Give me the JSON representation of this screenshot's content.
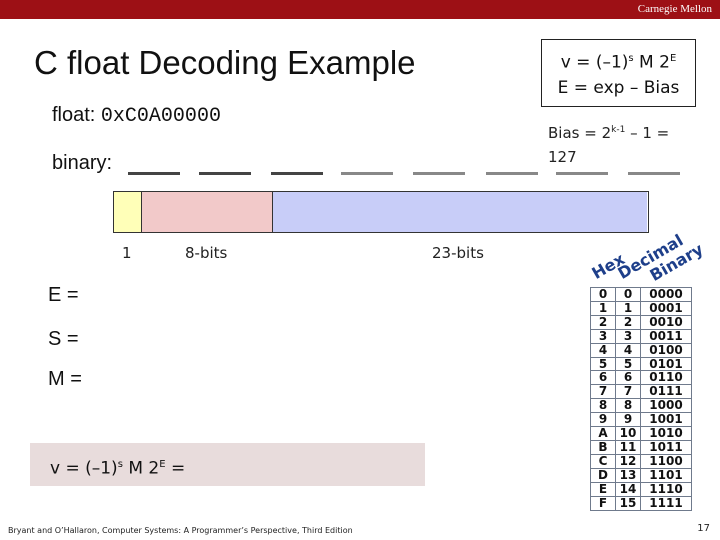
{
  "header": {
    "brand": "Carnegie Mellon",
    "bar_color": "#9d1015"
  },
  "slide": {
    "title": "C float Decoding Example",
    "float_label": "float:",
    "float_value": "0xC0A00000",
    "binary_label": "binary:",
    "formula": {
      "v_pre": "v = (–1)",
      "v_sup_s": "s",
      "v_mid": " M 2",
      "v_sup_e": "E",
      "e_line": "E  =  exp – Bias"
    },
    "bias": {
      "pre": "Bias = 2",
      "sup": "k-1",
      "post": " – 1 = 127"
    },
    "bit_labels": {
      "sign": "1",
      "exp": "8-bits",
      "frac": "23-bits"
    },
    "fields": {
      "e": "E =",
      "s": "S =",
      "m": "M ="
    },
    "result": {
      "pre": "v = (–1)",
      "sup_s": "s",
      "mid": " M 2",
      "sup_e": "E",
      "post": " ="
    },
    "colors": {
      "sign": "#ffffb8",
      "exp": "#f2c9c9",
      "frac": "#c8cdf8",
      "result_bg": "#e8dcdc"
    }
  },
  "hex_table": {
    "headers": [
      "Hex",
      "Decimal",
      "Binary"
    ],
    "rows": [
      [
        "0",
        "0",
        "0000"
      ],
      [
        "1",
        "1",
        "0001"
      ],
      [
        "2",
        "2",
        "0010"
      ],
      [
        "3",
        "3",
        "0011"
      ],
      [
        "4",
        "4",
        "0100"
      ],
      [
        "5",
        "5",
        "0101"
      ],
      [
        "6",
        "6",
        "0110"
      ],
      [
        "7",
        "7",
        "0111"
      ],
      [
        "8",
        "8",
        "1000"
      ],
      [
        "9",
        "9",
        "1001"
      ],
      [
        "A",
        "10",
        "1010"
      ],
      [
        "B",
        "11",
        "1011"
      ],
      [
        "C",
        "12",
        "1100"
      ],
      [
        "D",
        "13",
        "1101"
      ],
      [
        "E",
        "14",
        "1110"
      ],
      [
        "F",
        "15",
        "1111"
      ]
    ]
  },
  "footer": {
    "citation": "Bryant and O’Hallaron, Computer Systems: A Programmer’s Perspective, Third Edition",
    "page_number": "17"
  }
}
